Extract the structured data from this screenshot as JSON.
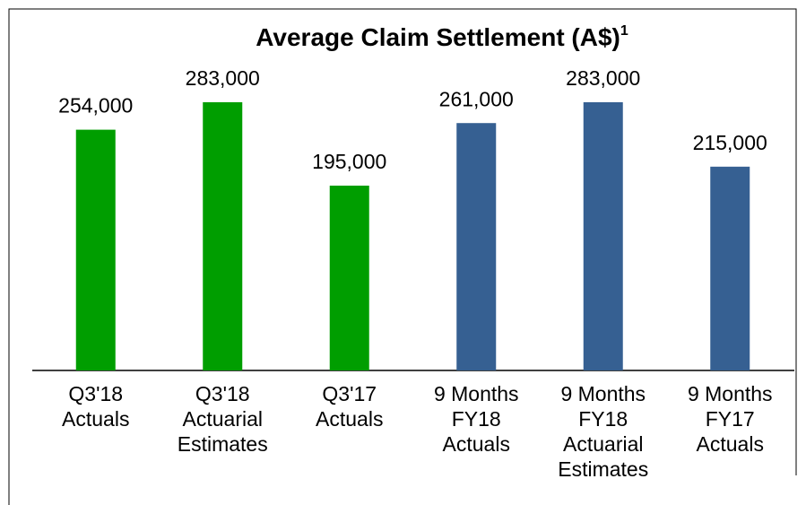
{
  "chart_data": {
    "type": "bar",
    "title": "Average Claim Settlement (A$)",
    "title_superscript": "1",
    "categories": [
      [
        "Q3'18",
        "Actuals"
      ],
      [
        "Q3'18",
        "Actuarial",
        "Estimates"
      ],
      [
        "Q3'17",
        "Actuals"
      ],
      [
        "9 Months",
        "FY18",
        "Actuals"
      ],
      [
        "9 Months",
        "FY18",
        "Actuarial",
        "Estimates"
      ],
      [
        "9 Months",
        "FY17",
        "Actuals"
      ]
    ],
    "values": [
      254000,
      283000,
      195000,
      261000,
      283000,
      215000
    ],
    "value_labels": [
      "254,000",
      "283,000",
      "195,000",
      "261,000",
      "283,000",
      "215,000"
    ],
    "colors": [
      "#009e00",
      "#009e00",
      "#009e00",
      "#366092",
      "#366092",
      "#366092"
    ],
    "ylim": [
      0,
      300000
    ]
  }
}
